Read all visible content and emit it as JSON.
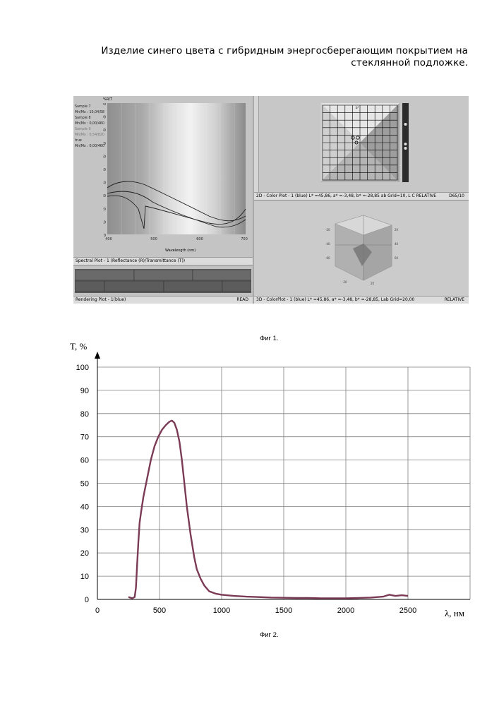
{
  "document": {
    "title": "Изделие синего цвета с гибридным энергосберегающим покрытием на стеклянной подложке."
  },
  "figure1": {
    "caption": "Фиг 1.",
    "spectral_panel": {
      "y_title": "%R/T",
      "x_label": "Wavelength (nm)",
      "legend_lines": [
        "Sample 7",
        "Mn/Mx : 10,04/58",
        "Sample 8",
        "Mn/Mx : 0,00/460",
        "Sample 9",
        "Mn/Mx : 0,54/820",
        "true",
        "Mn/Mx : 0,00/460"
      ],
      "y_ticks": [
        "100",
        "90",
        "80",
        "70",
        "60",
        "50",
        "40",
        "30",
        "20",
        "10",
        "0"
      ],
      "x_ticks": [
        "400",
        "500",
        "600",
        "700"
      ],
      "status": "Spectral Plot - 1 (Reflectance (R)/Transmittance (T))"
    },
    "rendering_panel": {
      "status": "Rendering Plot - 1(blue)",
      "status_right": "READ"
    },
    "color2d_panel": {
      "axis_label": "b*",
      "status": "2D - Color Plot - 1 (blue) L* =45,86, a* =-3,48, b* =-28,85   ab Grid=10, L C RELATIVE",
      "status_right": "D65/10"
    },
    "color3d_panel": {
      "status": "3D - ColorPlot - 1 (blue) L* =45,86, a* =-3,48, b* =-28,85, Lab Grid=20,00",
      "status_right": "RELATIVE"
    }
  },
  "figure2": {
    "caption": "Фиг 2."
  },
  "chart_data": {
    "type": "line",
    "title": "",
    "xlabel": "λ, нм",
    "ylabel": "T, %",
    "xlim": [
      0,
      2500
    ],
    "ylim": [
      0,
      100
    ],
    "x_ticks": [
      0,
      500,
      1000,
      1500,
      2000,
      2500
    ],
    "y_ticks": [
      0,
      10,
      20,
      30,
      40,
      50,
      60,
      70,
      80,
      90,
      100
    ],
    "grid": true,
    "line_color": "#7b3a55",
    "series": [
      {
        "x": [
          250,
          280,
          300,
          310,
          320,
          330,
          340,
          350,
          370,
          400,
          430,
          460,
          490,
          520,
          550,
          580,
          600,
          620,
          640,
          660,
          680,
          700,
          720,
          750,
          780,
          800,
          830,
          860,
          900,
          950,
          1000,
          1100,
          1200,
          1300,
          1400,
          1500,
          1600,
          1700,
          1800,
          1900,
          2000,
          2100,
          2200,
          2300,
          2350,
          2400,
          2450,
          2500
        ],
        "y": [
          1,
          0.5,
          1,
          5,
          15,
          25,
          33,
          37,
          44,
          52,
          60,
          66,
          70,
          73,
          75,
          76.5,
          77,
          76,
          73,
          68,
          60,
          50,
          40,
          28,
          18,
          13,
          9,
          6,
          3.5,
          2.5,
          2,
          1.5,
          1.2,
          1,
          0.8,
          0.7,
          0.6,
          0.6,
          0.5,
          0.5,
          0.5,
          0.6,
          0.8,
          1.2,
          2,
          1.5,
          1.8,
          1.5
        ]
      }
    ]
  }
}
